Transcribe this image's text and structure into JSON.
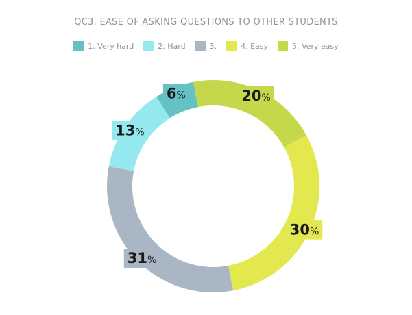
{
  "chart_data": {
    "type": "pie",
    "title": "QC3. EASE OF ASKING QUESTIONS TO OTHER STUDENTS",
    "legend_position": "top",
    "categories": [
      "1. Very hard",
      "2. Hard",
      "3.",
      "4. Easy",
      "5. Very easy"
    ],
    "values": [
      6,
      13,
      31,
      30,
      20
    ],
    "colors": [
      "#64c2c5",
      "#93e9ee",
      "#a9b7c4",
      "#e3e84e",
      "#c5d74a"
    ],
    "value_suffix": "%",
    "donut": true
  }
}
